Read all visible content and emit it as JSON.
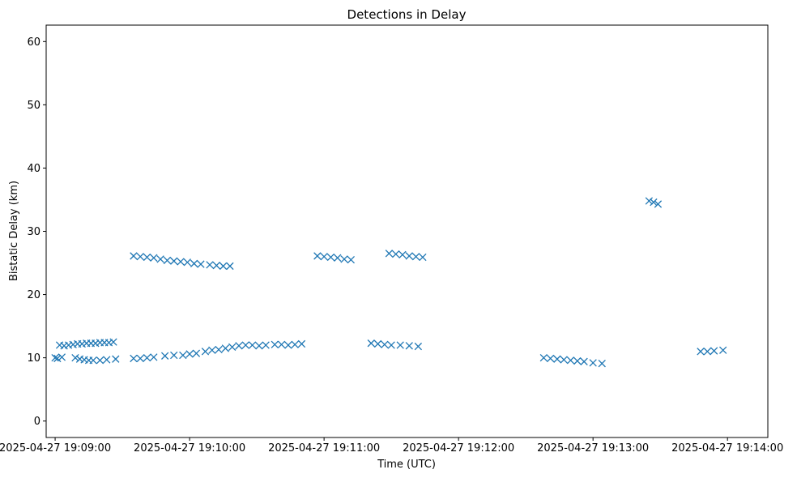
{
  "chart_data": {
    "type": "scatter",
    "title": "Detections in Delay",
    "xlabel": "Time (UTC)",
    "ylabel": "Bistatic Delay (km)",
    "x_ticks": [
      "2025-04-27 19:09:00",
      "2025-04-27 19:10:00",
      "2025-04-27 19:11:00",
      "2025-04-27 19:12:00",
      "2025-04-27 19:13:00",
      "2025-04-27 19:14:00"
    ],
    "y_ticks": [
      0,
      10,
      20,
      30,
      40,
      50,
      60
    ],
    "xlim": [
      "2025-04-27 19:08:56",
      "2025-04-27 19:14:18"
    ],
    "ylim": [
      -2.6,
      62.6
    ],
    "marker": "x",
    "color": "#1f77b4",
    "grid": false,
    "legend": "none",
    "series": [
      {
        "points": [
          [
            "19:09:00",
            10.0
          ],
          [
            "19:09:02",
            12.0
          ],
          [
            "19:09:04",
            11.9
          ],
          [
            "19:09:06",
            12.0
          ],
          [
            "19:09:08",
            12.1
          ],
          [
            "19:09:10",
            12.2
          ],
          [
            "19:09:12",
            12.2
          ],
          [
            "19:09:14",
            12.3
          ],
          [
            "19:09:16",
            12.3
          ],
          [
            "19:09:18",
            12.3
          ],
          [
            "19:09:20",
            12.4
          ],
          [
            "19:09:22",
            12.4
          ],
          [
            "19:09:24",
            12.4
          ],
          [
            "19:09:26",
            12.5
          ],
          [
            "19:09:01",
            9.9
          ],
          [
            "19:09:03",
            10.1
          ],
          [
            "19:09:09",
            10.0
          ],
          [
            "19:09:11",
            9.8
          ],
          [
            "19:09:13",
            9.7
          ],
          [
            "19:09:15",
            9.6
          ],
          [
            "19:09:17",
            9.6
          ],
          [
            "19:09:20",
            9.6
          ],
          [
            "19:09:23",
            9.7
          ],
          [
            "19:09:27",
            9.8
          ],
          [
            "19:09:35",
            26.1
          ],
          [
            "19:09:38",
            26.0
          ],
          [
            "19:09:41",
            25.9
          ],
          [
            "19:09:44",
            25.8
          ],
          [
            "19:09:47",
            25.6
          ],
          [
            "19:09:50",
            25.4
          ],
          [
            "19:09:53",
            25.3
          ],
          [
            "19:09:56",
            25.2
          ],
          [
            "19:09:59",
            25.1
          ],
          [
            "19:10:02",
            24.9
          ],
          [
            "19:10:05",
            24.8
          ],
          [
            "19:10:09",
            24.7
          ],
          [
            "19:10:12",
            24.6
          ],
          [
            "19:10:15",
            24.5
          ],
          [
            "19:10:18",
            24.5
          ],
          [
            "19:09:35",
            9.9
          ],
          [
            "19:09:38",
            9.9
          ],
          [
            "19:09:41",
            10.0
          ],
          [
            "19:09:44",
            10.1
          ],
          [
            "19:09:49",
            10.3
          ],
          [
            "19:09:53",
            10.4
          ],
          [
            "19:09:57",
            10.4
          ],
          [
            "19:10:00",
            10.6
          ],
          [
            "19:10:03",
            10.7
          ],
          [
            "19:10:07",
            11.0
          ],
          [
            "19:10:10",
            11.2
          ],
          [
            "19:10:13",
            11.3
          ],
          [
            "19:10:16",
            11.5
          ],
          [
            "19:10:19",
            11.7
          ],
          [
            "19:10:22",
            11.9
          ],
          [
            "19:10:25",
            12.0
          ],
          [
            "19:10:28",
            12.0
          ],
          [
            "19:10:31",
            11.9
          ],
          [
            "19:10:34",
            12.0
          ],
          [
            "19:10:38",
            12.1
          ],
          [
            "19:10:41",
            12.1
          ],
          [
            "19:10:44",
            12.0
          ],
          [
            "19:10:47",
            12.1
          ],
          [
            "19:10:50",
            12.2
          ],
          [
            "19:10:57",
            26.1
          ],
          [
            "19:11:00",
            26.0
          ],
          [
            "19:11:03",
            25.9
          ],
          [
            "19:11:06",
            25.8
          ],
          [
            "19:11:09",
            25.6
          ],
          [
            "19:11:12",
            25.5
          ],
          [
            "19:11:21",
            12.3
          ],
          [
            "19:11:24",
            12.2
          ],
          [
            "19:11:27",
            12.1
          ],
          [
            "19:11:30",
            12.0
          ],
          [
            "19:11:34",
            12.0
          ],
          [
            "19:11:38",
            11.9
          ],
          [
            "19:11:42",
            11.8
          ],
          [
            "19:11:29",
            26.5
          ],
          [
            "19:11:32",
            26.4
          ],
          [
            "19:11:35",
            26.3
          ],
          [
            "19:11:38",
            26.1
          ],
          [
            "19:11:41",
            26.0
          ],
          [
            "19:11:44",
            25.9
          ],
          [
            "19:12:38",
            10.0
          ],
          [
            "19:12:41",
            9.9
          ],
          [
            "19:12:44",
            9.8
          ],
          [
            "19:12:47",
            9.7
          ],
          [
            "19:12:50",
            9.6
          ],
          [
            "19:12:53",
            9.5
          ],
          [
            "19:12:56",
            9.4
          ],
          [
            "19:13:00",
            9.2
          ],
          [
            "19:13:04",
            9.1
          ],
          [
            "19:13:25",
            34.8
          ],
          [
            "19:13:27",
            34.6
          ],
          [
            "19:13:29",
            34.3
          ],
          [
            "19:13:48",
            11.0
          ],
          [
            "19:13:51",
            11.0
          ],
          [
            "19:13:54",
            11.1
          ],
          [
            "19:13:58",
            11.2
          ]
        ]
      }
    ]
  }
}
